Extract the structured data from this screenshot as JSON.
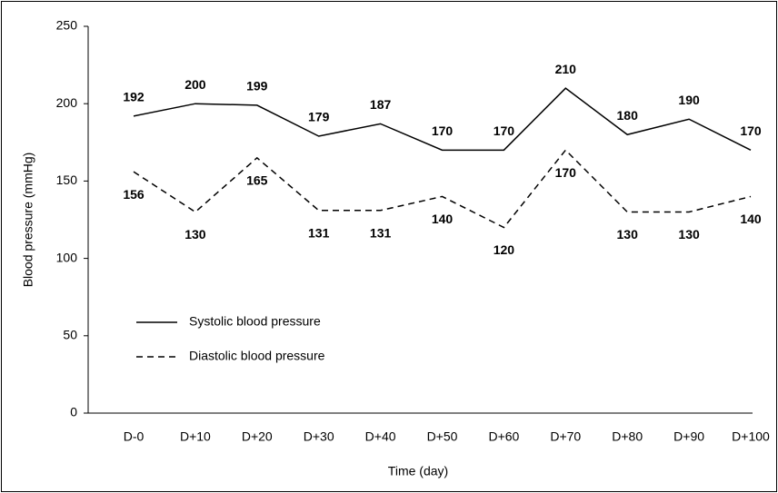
{
  "chart_data": {
    "type": "line",
    "xlabel": "Time (day)",
    "ylabel": "Blood pressure (mmHg)",
    "categories": [
      "D-0",
      "D+10",
      "D+20",
      "D+30",
      "D+40",
      "D+50",
      "D+60",
      "D+70",
      "D+80",
      "D+90",
      "D+100"
    ],
    "series": [
      {
        "name": "Systolic blood pressure",
        "color": "#000000",
        "linestyle": "solid",
        "label_side": "above",
        "values": [
          192,
          200,
          199,
          179,
          187,
          170,
          170,
          210,
          180,
          190,
          170
        ]
      },
      {
        "name": "Diastolic blood pressure",
        "color": "#000000",
        "linestyle": "dashed",
        "label_side": "below",
        "values": [
          156,
          130,
          165,
          131,
          131,
          140,
          120,
          170,
          130,
          130,
          140
        ]
      }
    ],
    "ylim": [
      0,
      250
    ],
    "yticks": [
      0,
      50,
      100,
      150,
      200,
      250
    ],
    "grid": false,
    "legend": "lower left"
  }
}
